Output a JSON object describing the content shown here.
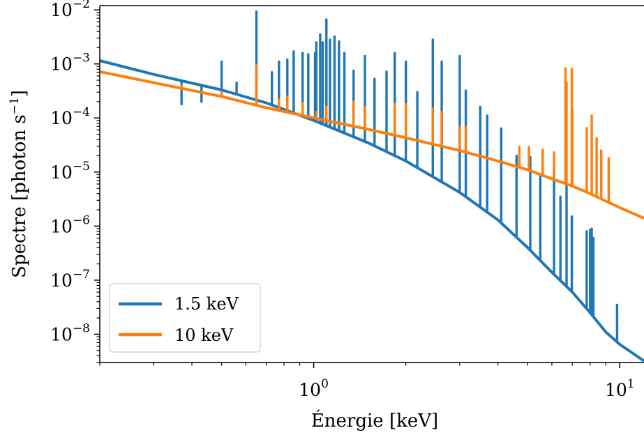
{
  "chart_data": {
    "type": "line",
    "title": "",
    "xlabel": "Énergie [keV]",
    "ylabel_main": "Spectre [photon s",
    "ylabel_sup": "−1",
    "ylabel_end": "]",
    "xscale": "log",
    "yscale": "log",
    "xlim": [
      0.2,
      12
    ],
    "ylim": [
      3e-09,
      0.012
    ],
    "grid": false,
    "legend_position": "bottom-left",
    "x_ticks": [
      {
        "value": 1,
        "base": "10",
        "exp": "0"
      },
      {
        "value": 10,
        "base": "10",
        "exp": "1"
      }
    ],
    "y_ticks": [
      {
        "value": 0.01,
        "base": "10",
        "exp": "−2"
      },
      {
        "value": 0.001,
        "base": "10",
        "exp": "−3"
      },
      {
        "value": 0.0001,
        "base": "10",
        "exp": "−4"
      },
      {
        "value": 1e-05,
        "base": "10",
        "exp": "−5"
      },
      {
        "value": 1e-06,
        "base": "10",
        "exp": "−6"
      },
      {
        "value": 1e-07,
        "base": "10",
        "exp": "−7"
      },
      {
        "value": 1e-08,
        "base": "10",
        "exp": "−8"
      }
    ],
    "series": [
      {
        "name": "1.5 keV",
        "color": "#1f77b4",
        "continuum": [
          [
            0.2,
            0.00115
          ],
          [
            0.3,
            0.00064
          ],
          [
            0.5,
            0.00033
          ],
          [
            0.7,
            0.00019
          ],
          [
            1.0,
            9e-05
          ],
          [
            1.5,
            3.5e-05
          ],
          [
            2.0,
            1.6e-05
          ],
          [
            3.0,
            4.2e-06
          ],
          [
            4.0,
            1.3e-06
          ],
          [
            5.0,
            4e-07
          ],
          [
            6.0,
            1.4e-07
          ],
          [
            7.0,
            6e-08
          ],
          [
            8.0,
            2.5e-08
          ],
          [
            9.0,
            1.1e-08
          ],
          [
            10.0,
            6.5e-09
          ],
          [
            12.0,
            3.2e-09
          ]
        ],
        "lines": [
          [
            0.37,
            0.00018
          ],
          [
            0.43,
            0.0002
          ],
          [
            0.5,
            0.0011
          ],
          [
            0.56,
            0.00045
          ],
          [
            0.65,
            0.0093
          ],
          [
            0.73,
            0.0007
          ],
          [
            0.77,
            0.0011
          ],
          [
            0.82,
            0.0012
          ],
          [
            0.86,
            0.0017
          ],
          [
            0.92,
            0.0016
          ],
          [
            0.96,
            0.0015
          ],
          [
            1.01,
            0.0016
          ],
          [
            1.02,
            0.0025
          ],
          [
            1.05,
            0.0035
          ],
          [
            1.07,
            0.0025
          ],
          [
            1.1,
            0.0066
          ],
          [
            1.13,
            0.0028
          ],
          [
            1.17,
            0.0032
          ],
          [
            1.21,
            0.0026
          ],
          [
            1.26,
            0.0016
          ],
          [
            1.35,
            0.00075
          ],
          [
            1.47,
            0.0014
          ],
          [
            1.58,
            0.00053
          ],
          [
            1.73,
            0.00072
          ],
          [
            1.84,
            0.0016
          ],
          [
            2.0,
            0.0011
          ],
          [
            2.18,
            0.0003
          ],
          [
            2.45,
            0.0028
          ],
          [
            2.62,
            0.0011
          ],
          [
            3.0,
            0.0014
          ],
          [
            3.14,
            0.00032
          ],
          [
            3.5,
            0.00016
          ],
          [
            3.69,
            0.00011
          ],
          [
            4.1,
            6.4e-05
          ],
          [
            4.6,
            2e-05
          ],
          [
            5.1,
            1.9e-05
          ],
          [
            5.5,
            8.5e-06
          ],
          [
            6.1,
            1.2e-05
          ],
          [
            6.4,
            3.5e-06
          ],
          [
            6.7,
            5.5e-06
          ],
          [
            6.97,
            1.5e-06
          ],
          [
            7.8,
            8e-07
          ],
          [
            8.0,
            8.5e-07
          ],
          [
            8.1,
            9e-07
          ],
          [
            8.2,
            6e-07
          ],
          [
            9.8,
            3.5e-08
          ]
        ]
      },
      {
        "name": "10 keV",
        "color": "#ff7f0e",
        "continuum": [
          [
            0.2,
            0.00072
          ],
          [
            0.3,
            0.00045
          ],
          [
            0.5,
            0.00025
          ],
          [
            0.7,
            0.000155
          ],
          [
            1.0,
            0.0001
          ],
          [
            1.5,
            6.2e-05
          ],
          [
            2.0,
            4.3e-05
          ],
          [
            3.0,
            2.5e-05
          ],
          [
            4.0,
            1.6e-05
          ],
          [
            5.0,
            1.1e-05
          ],
          [
            6.0,
            7.5e-06
          ],
          [
            7.0,
            5.5e-06
          ],
          [
            8.0,
            4e-06
          ],
          [
            9.0,
            2.9e-06
          ],
          [
            10.0,
            2.2e-06
          ],
          [
            12.0,
            1.4e-06
          ]
        ],
        "lines": [
          [
            0.37,
            0.0004
          ],
          [
            0.5,
            0.0003
          ],
          [
            0.65,
            0.00095
          ],
          [
            0.77,
            0.00022
          ],
          [
            0.82,
            0.00025
          ],
          [
            0.92,
            0.00019
          ],
          [
            1.02,
            0.00013
          ],
          [
            1.1,
            0.00016
          ],
          [
            1.35,
            0.0002
          ],
          [
            1.47,
            0.00016
          ],
          [
            1.84,
            0.00018
          ],
          [
            2.0,
            0.00018
          ],
          [
            2.45,
            0.00015
          ],
          [
            2.62,
            0.00013
          ],
          [
            3.0,
            6.8e-05
          ],
          [
            3.14,
            6.8e-05
          ],
          [
            4.7,
            2.9e-05
          ],
          [
            5.05,
            2.9e-05
          ],
          [
            5.6,
            2.6e-05
          ],
          [
            6.1,
            2.3e-05
          ],
          [
            6.65,
            0.00083
          ],
          [
            6.7,
            0.00045
          ],
          [
            6.97,
            0.0008
          ],
          [
            7.0,
            0.00014
          ],
          [
            7.8,
            6.5e-05
          ],
          [
            8.1,
            0.00011
          ],
          [
            8.4,
            4.2e-05
          ],
          [
            8.7,
            2.5e-05
          ],
          [
            9.2,
            1.8e-05
          ]
        ]
      }
    ]
  }
}
